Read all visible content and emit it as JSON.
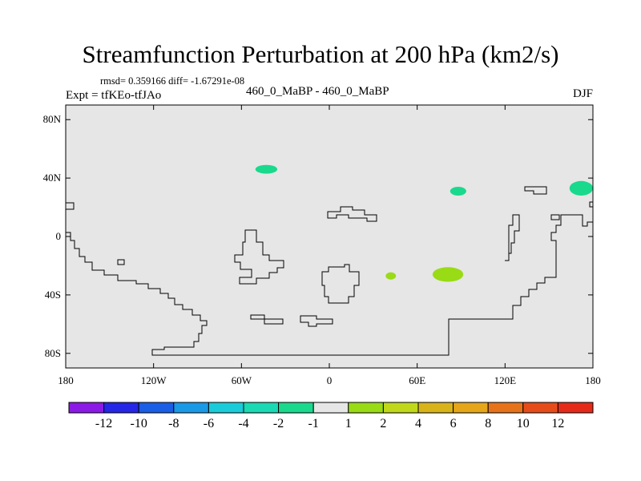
{
  "title": "Streamfunction Perturbation at 200 hPa (km2/s)",
  "stats_text": "rmsd= 0.359166 diff= -1.67291e-08",
  "experiment_text": "Expt = tfKEo-tfJAo",
  "case_text": "460_0_MaBP - 460_0_MaBP",
  "season_text": "DJF",
  "map": {
    "lon_range": [
      -180,
      180
    ],
    "lat_range": [
      -90,
      90
    ],
    "background_color": "#e6e6e6",
    "lat_ticks": [
      {
        "value": 80,
        "label": "80N"
      },
      {
        "value": 40,
        "label": "40N"
      },
      {
        "value": 0,
        "label": "0"
      },
      {
        "value": -40,
        "label": "40S"
      },
      {
        "value": -80,
        "label": "80S"
      }
    ],
    "lon_ticks": [
      {
        "value": -180,
        "label": "180"
      },
      {
        "value": -120,
        "label": "120W"
      },
      {
        "value": -60,
        "label": "60W"
      },
      {
        "value": 0,
        "label": "0"
      },
      {
        "value": 60,
        "label": "60E"
      },
      {
        "value": 120,
        "label": "120E"
      },
      {
        "value": 180,
        "label": "180"
      }
    ],
    "anomaly_patches": [
      {
        "name": "anomaly-patch-north-atlantic",
        "lon": -43,
        "lat": 46,
        "rlon": 7.5,
        "rlat": 3,
        "level": "-2 to -1",
        "color": "#19d98c"
      },
      {
        "name": "anomaly-patch-east-asia",
        "lon": 88,
        "lat": 31,
        "rlon": 5.5,
        "rlat": 3,
        "level": "-2 to -1",
        "color": "#19d98c"
      },
      {
        "name": "anomaly-patch-north-pacific",
        "lon": 172,
        "lat": 33,
        "rlon": 8,
        "rlat": 5,
        "level": "-2 to -1",
        "color": "#19d98c"
      },
      {
        "name": "anomaly-patch-south-indian-small",
        "lon": 42,
        "lat": -27,
        "rlon": 3.5,
        "rlat": 2.5,
        "level": "1 to 2",
        "color": "#99db14"
      },
      {
        "name": "anomaly-patch-south-indian-large",
        "lon": 81,
        "lat": -26,
        "rlon": 10.5,
        "rlat": 5,
        "level": "1 to 2",
        "color": "#99db14"
      }
    ]
  },
  "colorbar": {
    "colors": [
      "#8c1ae6",
      "#2626e6",
      "#1a5ee6",
      "#1a99e6",
      "#1accd9",
      "#1ad9b3",
      "#1ad98c",
      "#e6e6e6",
      "#99db14",
      "#bfd91a",
      "#d9b31a",
      "#e6a61a",
      "#e6731a",
      "#e64c1a",
      "#e62a1a"
    ],
    "labels": [
      "-12",
      "-10",
      "-8",
      "-6",
      "-4",
      "-2",
      "-1",
      "1",
      "2",
      "4",
      "6",
      "8",
      "10",
      "12"
    ]
  }
}
